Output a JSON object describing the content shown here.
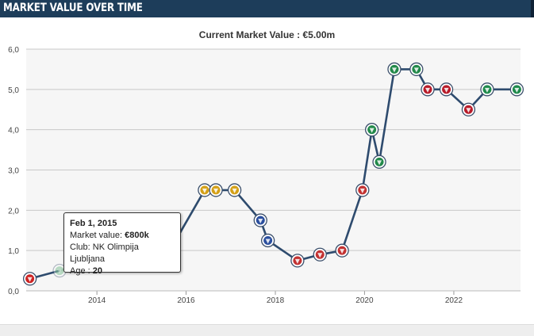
{
  "header": {
    "title": "MARKET VALUE OVER TIME"
  },
  "subtitle": {
    "label": "Current Market Value :",
    "value": "€5.00m"
  },
  "tooltip": {
    "date": "Feb 1, 2015",
    "market_value_label": "Market value:",
    "market_value": "€800k",
    "club_label": "Club:",
    "club": "NK Olimpija Ljubljana",
    "age_label": "Age :",
    "age": "20"
  },
  "colors": {
    "header": "#1d3d5a",
    "line": "#2e4b6e",
    "grid": "#c8c8c8",
    "plot_bg": "#f6f6f6"
  },
  "chart_data": {
    "type": "line",
    "title": "Current Market Value : €5.00m",
    "xlabel": "",
    "ylabel": "",
    "x_type": "date",
    "xlim": [
      "2012-06-01",
      "2023-07-01"
    ],
    "ylim": [
      0,
      6
    ],
    "y_ticks": [
      "0,0",
      "1,0",
      "2,0",
      "3,0",
      "4,0",
      "5,0",
      "6,0"
    ],
    "y_tick_values": [
      0,
      1,
      2,
      3,
      4,
      5,
      6
    ],
    "x_ticks": [
      "2014",
      "2016",
      "2018",
      "2020",
      "2022"
    ],
    "x_tick_dates": [
      "2014-01-01",
      "2016-01-01",
      "2018-01-01",
      "2020-01-01",
      "2022-01-01"
    ],
    "grid": true,
    "marker": "club-crest",
    "series": [
      {
        "values": [
          {
            "date": "2012-07-01",
            "value": 0.3
          },
          {
            "date": "2013-03-01",
            "value": 0.5
          },
          {
            "date": "2014-01-15",
            "value": 0.8
          },
          {
            "date": "2014-10-01",
            "value": 0.7
          },
          {
            "date": "2015-02-01",
            "value": 0.8
          },
          {
            "date": "2015-08-01",
            "value": 0.9
          },
          {
            "date": "2016-06-01",
            "value": 2.5
          },
          {
            "date": "2016-09-01",
            "value": 2.5
          },
          {
            "date": "2017-02-01",
            "value": 2.5
          },
          {
            "date": "2017-09-01",
            "value": 1.75
          },
          {
            "date": "2017-11-01",
            "value": 1.25
          },
          {
            "date": "2018-07-01",
            "value": 0.75
          },
          {
            "date": "2019-01-01",
            "value": 0.9
          },
          {
            "date": "2019-07-01",
            "value": 1.0
          },
          {
            "date": "2019-12-15",
            "value": 2.5
          },
          {
            "date": "2020-03-01",
            "value": 4.0
          },
          {
            "date": "2020-05-01",
            "value": 3.2
          },
          {
            "date": "2020-09-01",
            "value": 5.5
          },
          {
            "date": "2021-03-01",
            "value": 5.5
          },
          {
            "date": "2021-06-01",
            "value": 5.0
          },
          {
            "date": "2021-11-01",
            "value": 5.0
          },
          {
            "date": "2022-05-01",
            "value": 4.5
          },
          {
            "date": "2022-10-01",
            "value": 5.0
          },
          {
            "date": "2023-06-01",
            "value": 5.0
          }
        ]
      }
    ],
    "marker_colors": [
      "#cc2222",
      "#3a9b5a",
      "#3a9b5a",
      "#3a9b5a",
      "#3a9b5a",
      "#3a9b5a",
      "#d4a017",
      "#d4a017",
      "#d4a017",
      "#2b4f9e",
      "#2b4f9e",
      "#c23232",
      "#c23232",
      "#c23232",
      "#c23232",
      "#22894a",
      "#22894a",
      "#22894a",
      "#22894a",
      "#b81c2a",
      "#b81c2a",
      "#b81c2a",
      "#1f8a4c",
      "#1f8a4c"
    ]
  }
}
